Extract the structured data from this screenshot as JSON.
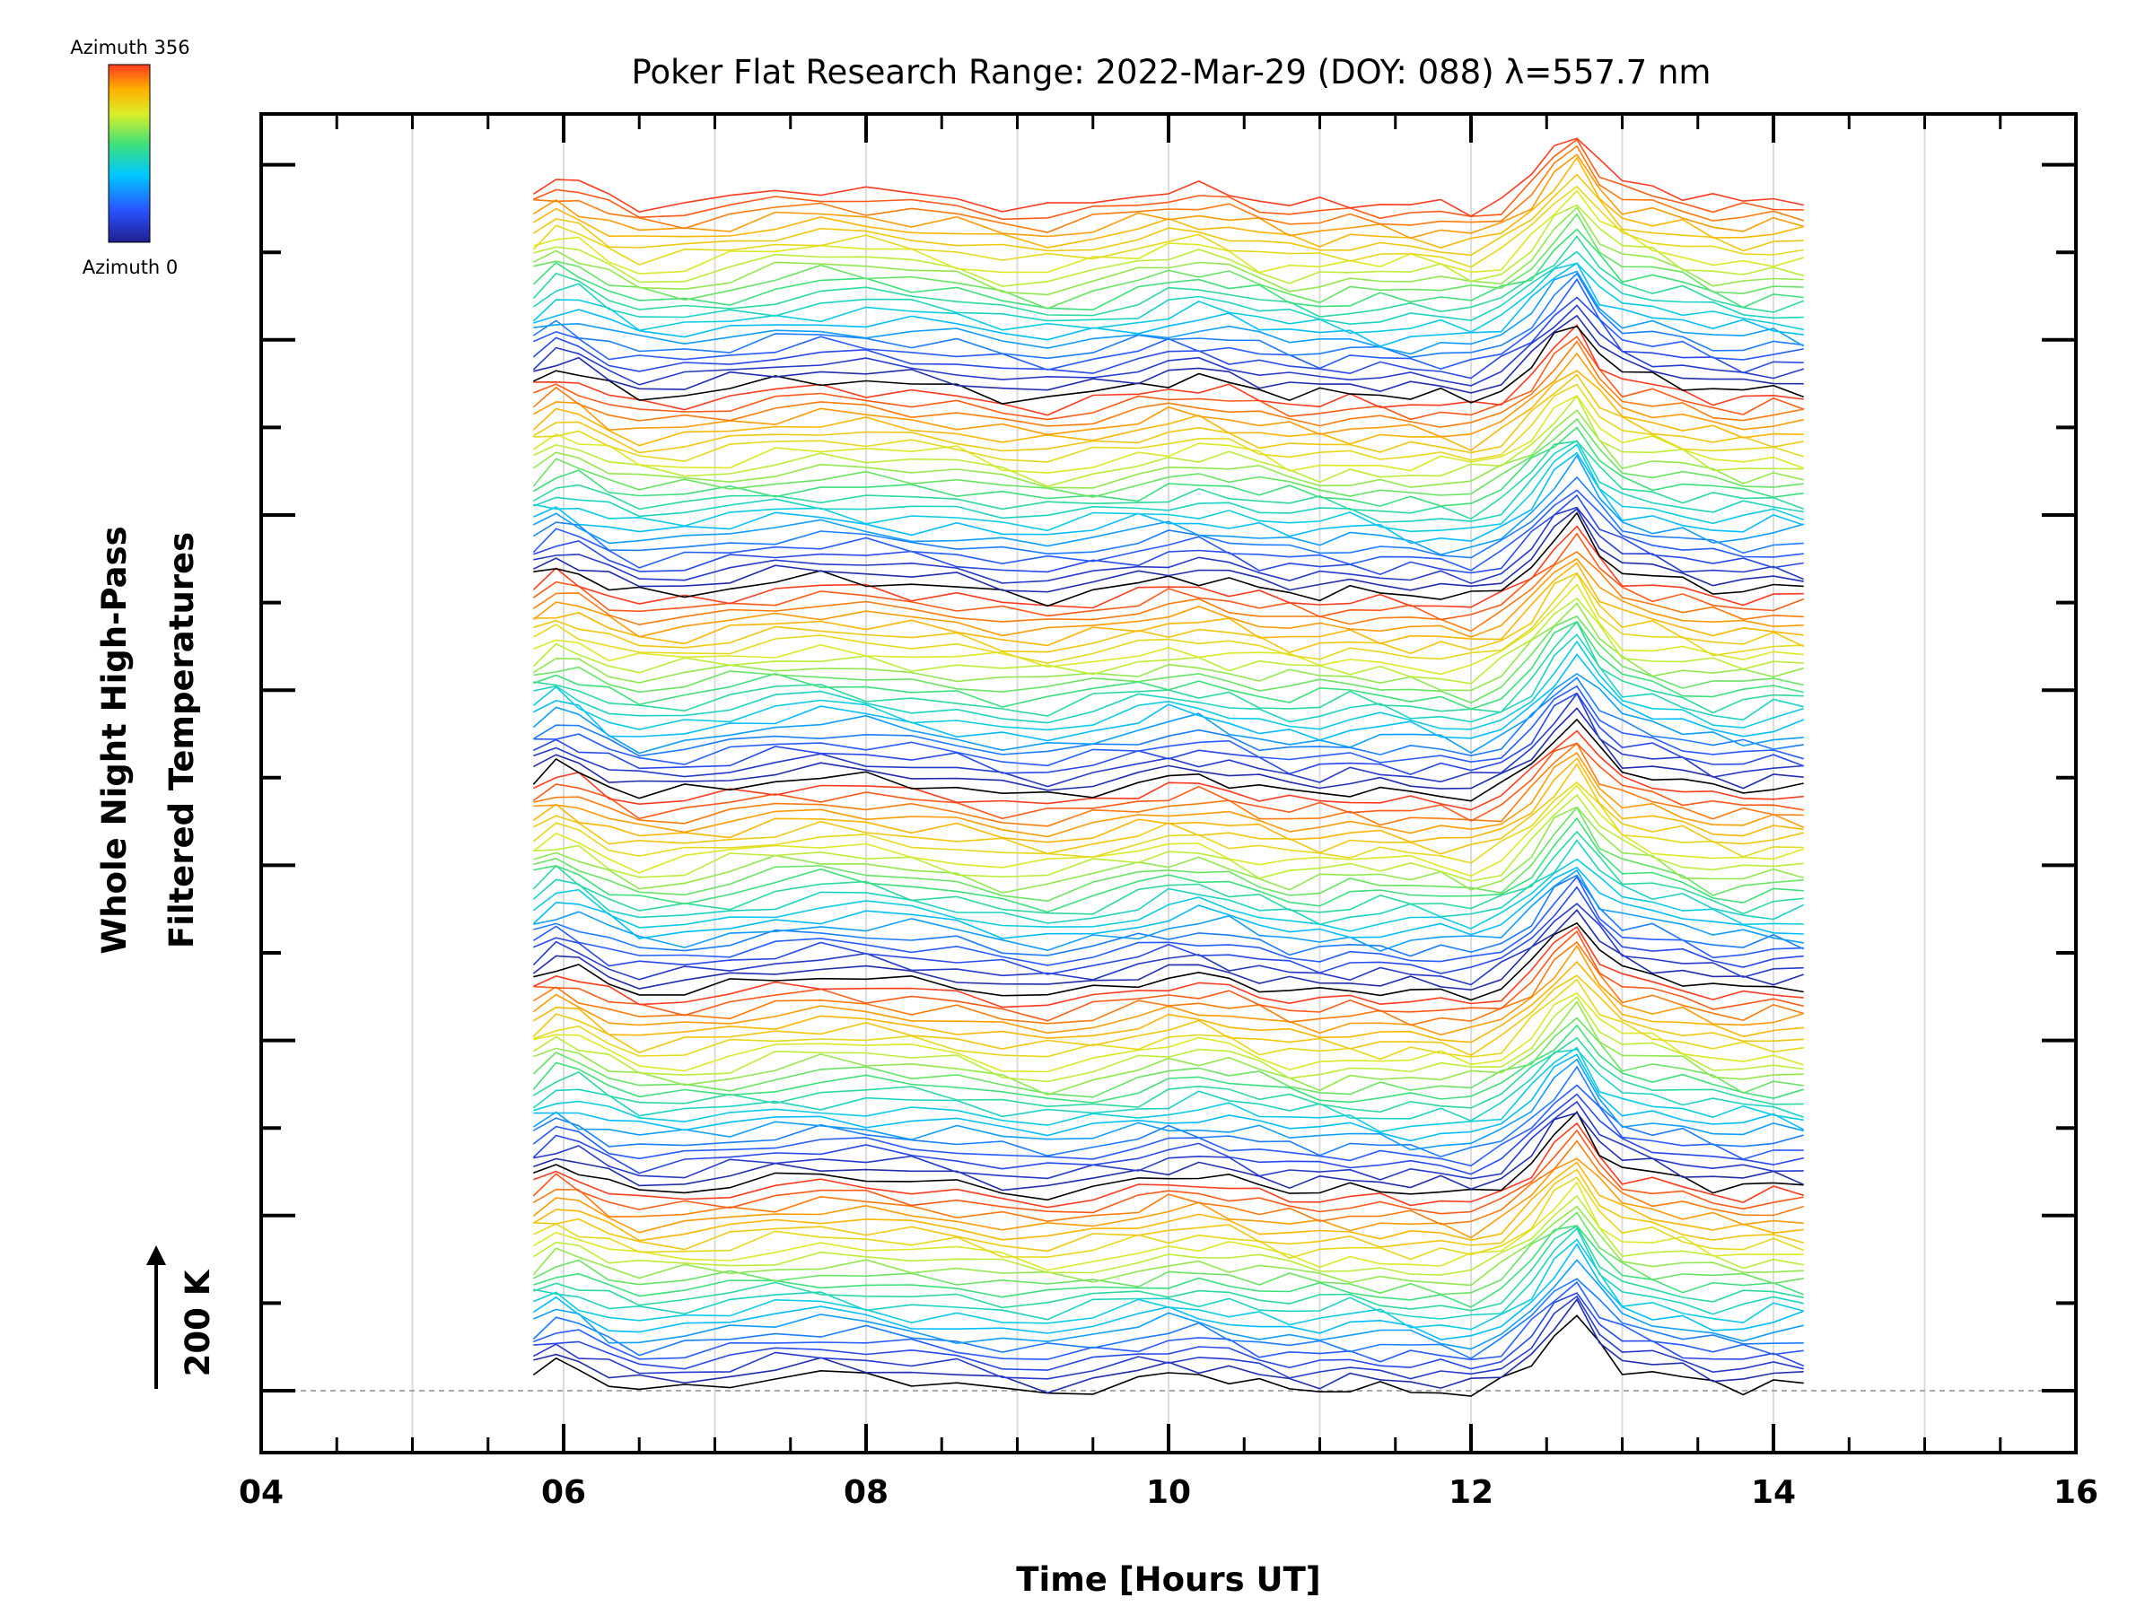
{
  "chart_data": {
    "type": "line",
    "title": "Poker Flat Research Range: 2022-Mar-29 (DOY: 088) λ=557.7 nm",
    "xlabel": "Time [Hours UT]",
    "ylabel": [
      "Whole Night High-Pass",
      "Filtered Temperatures"
    ],
    "scale_label": "200 K",
    "xlim": [
      4,
      16
    ],
    "x_tick_labels": [
      "04",
      "06",
      "08",
      "10",
      "12",
      "14",
      "16"
    ],
    "grid": "vertical",
    "legend": {
      "type": "colorbar",
      "position": "top-left",
      "top_label": "Azimuth 356",
      "bottom_label": "Azimuth 0",
      "colors": [
        "#1f1f8f",
        "#2a52ff",
        "#00c8ff",
        "#3de07a",
        "#d9ef2a",
        "#ffb000",
        "#ff3b1f"
      ]
    },
    "series_description": "Many stacked offset temperature traces from 05.8 to 14.2 hours UT, color-coded by azimuth (0 to 356), in repeating groups; all traces show a common peak near 12.7 hours UT.",
    "x_times": [
      5.8,
      5.95,
      6.1,
      6.3,
      6.5,
      6.8,
      7.1,
      7.4,
      7.7,
      8.0,
      8.3,
      8.6,
      8.9,
      9.2,
      9.5,
      9.8,
      10.0,
      10.2,
      10.4,
      10.6,
      10.8,
      11.0,
      11.2,
      11.4,
      11.6,
      11.8,
      12.0,
      12.2,
      12.4,
      12.55,
      12.7,
      12.85,
      13.0,
      13.2,
      13.4,
      13.6,
      13.8,
      14.0,
      14.2
    ],
    "common_profile": [
      0.15,
      0.7,
      0.45,
      -0.2,
      -0.6,
      -0.5,
      -0.25,
      0.05,
      0.2,
      0.1,
      -0.1,
      -0.25,
      -0.6,
      -0.75,
      -0.45,
      -0.1,
      0.15,
      0.2,
      0.0,
      -0.3,
      -0.5,
      -0.55,
      -0.45,
      -0.5,
      -0.55,
      -0.6,
      -0.75,
      -0.3,
      0.8,
      2.0,
      2.9,
      1.4,
      0.5,
      0.25,
      0.0,
      -0.3,
      -0.4,
      -0.25,
      -0.3
    ],
    "group_count": 6,
    "traces_per_group": 23
  }
}
